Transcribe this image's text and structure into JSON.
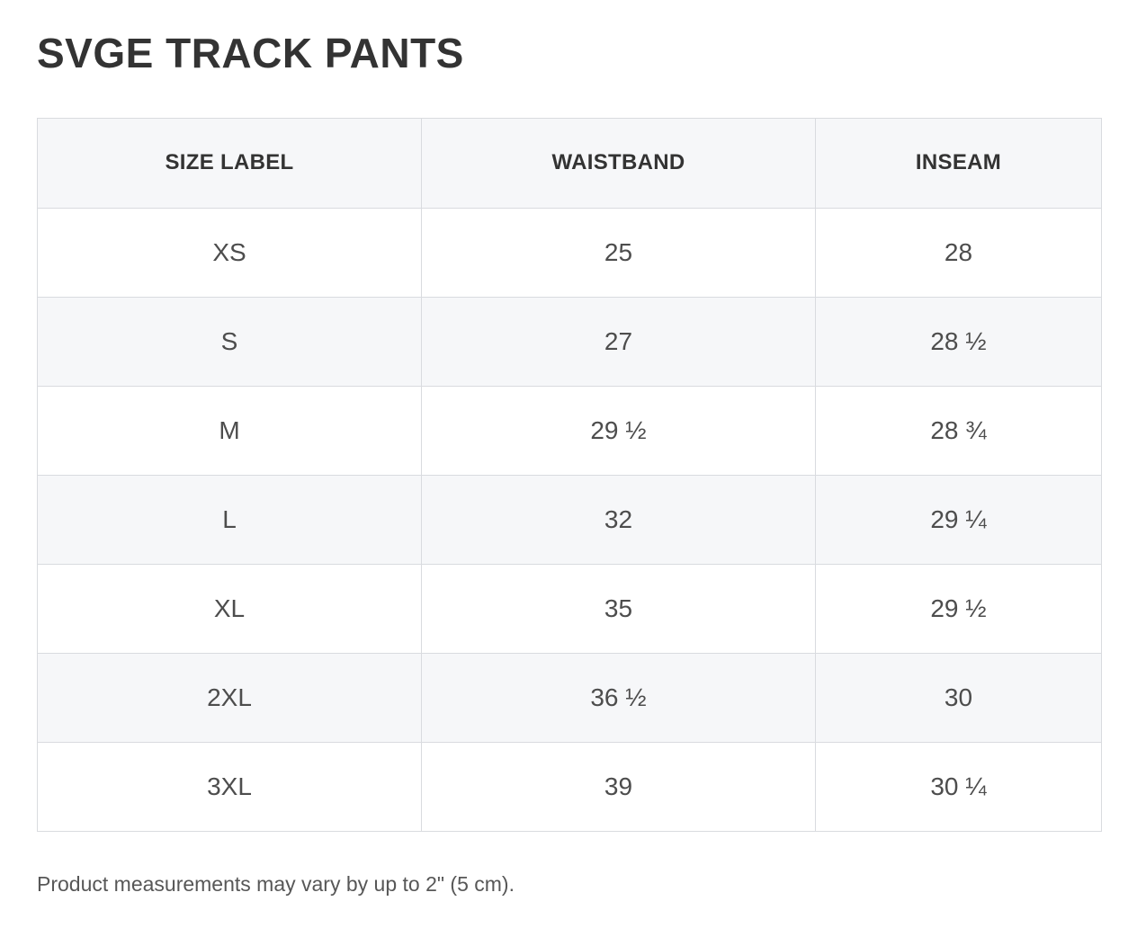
{
  "page": {
    "title": "SVGE TRACK PANTS",
    "footnote": "Product measurements may vary by up to 2\" (5 cm)."
  },
  "chart_data": {
    "type": "table",
    "columns": [
      "SIZE LABEL",
      "WAISTBAND",
      "INSEAM"
    ],
    "rows": [
      [
        "XS",
        "25",
        "28"
      ],
      [
        "S",
        "27",
        "28 ½"
      ],
      [
        "M",
        "29 ½",
        "28 ¾"
      ],
      [
        "L",
        "32",
        "29 ¼"
      ],
      [
        "XL",
        "35",
        "29 ½"
      ],
      [
        "2XL",
        "36 ½",
        "30"
      ],
      [
        "3XL",
        "39",
        "30 ¼"
      ]
    ],
    "striped_rows": "even data rows (S, L, 2XL) shaded",
    "units": "inches"
  },
  "colors": {
    "header_bg": "#f6f7f9",
    "stripe_bg": "#f6f7f9",
    "border": "#d9dbdf",
    "title_text": "#333333",
    "cell_text": "#4d4d4d",
    "footnote_text": "#575757"
  }
}
